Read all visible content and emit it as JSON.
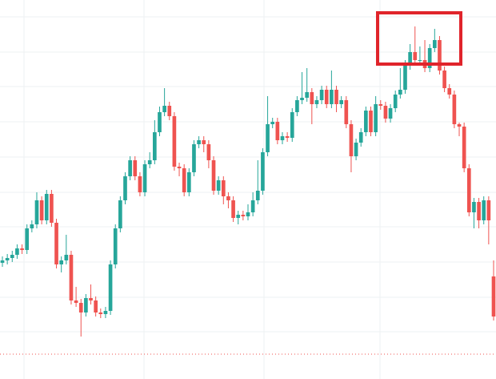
{
  "chart_data": {
    "type": "candlestick",
    "ylim": [
      0,
      473
    ],
    "up_color": "#26a69a",
    "down_color": "#ef5350",
    "open": [
      145,
      148,
      151,
      155,
      163,
      161,
      188,
      193,
      223,
      198,
      231,
      195,
      143,
      148,
      155,
      98,
      95,
      83,
      101,
      98,
      83,
      81,
      85,
      143,
      188,
      223,
      253,
      273,
      253,
      233,
      268,
      273,
      308,
      333,
      341,
      328,
      265,
      263,
      233,
      258,
      293,
      298,
      293,
      273,
      235,
      248,
      228,
      223,
      201,
      205,
      203,
      208,
      223,
      235,
      283,
      318,
      321,
      298,
      303,
      301,
      333,
      348,
      351,
      358,
      343,
      348,
      361,
      343,
      361,
      343,
      348,
      318,
      278,
      295,
      308,
      335,
      308,
      343,
      341,
      325,
      338,
      355,
      361,
      391,
      408,
      398,
      398,
      388,
      413,
      423,
      385,
      363,
      355,
      318,
      315,
      263,
      208,
      221,
      198,
      223,
      128
    ],
    "high": [
      153,
      156,
      160,
      168,
      168,
      193,
      198,
      233,
      228,
      236,
      236,
      200,
      153,
      180,
      160,
      115,
      100,
      106,
      118,
      103,
      88,
      90,
      148,
      193,
      228,
      258,
      278,
      278,
      258,
      273,
      283,
      323,
      340,
      363,
      346,
      333,
      270,
      268,
      263,
      298,
      303,
      303,
      298,
      278,
      253,
      253,
      233,
      228,
      210,
      210,
      218,
      233,
      273,
      288,
      353,
      326,
      326,
      308,
      308,
      338,
      353,
      383,
      388,
      363,
      353,
      366,
      366,
      385,
      366,
      353,
      353,
      323,
      300,
      313,
      340,
      340,
      353,
      348,
      346,
      343,
      360,
      388,
      398,
      418,
      440,
      415,
      423,
      418,
      437,
      428,
      390,
      368,
      360,
      320,
      320,
      268,
      226,
      226,
      228,
      228,
      148
    ],
    "low": [
      140,
      143,
      146,
      150,
      156,
      156,
      183,
      188,
      193,
      193,
      190,
      138,
      133,
      143,
      93,
      90,
      53,
      78,
      93,
      78,
      76,
      76,
      80,
      138,
      183,
      218,
      248,
      248,
      228,
      228,
      263,
      268,
      303,
      328,
      323,
      260,
      253,
      228,
      228,
      253,
      288,
      283,
      263,
      230,
      230,
      218,
      213,
      196,
      193,
      198,
      198,
      203,
      218,
      230,
      278,
      313,
      293,
      293,
      296,
      296,
      328,
      343,
      346,
      318,
      338,
      343,
      338,
      338,
      333,
      338,
      313,
      258,
      273,
      290,
      303,
      303,
      303,
      336,
      320,
      320,
      333,
      350,
      356,
      386,
      393,
      393,
      383,
      383,
      408,
      380,
      358,
      350,
      313,
      303,
      258,
      203,
      188,
      188,
      193,
      168,
      73
    ],
    "close": [
      148,
      151,
      155,
      163,
      161,
      188,
      193,
      223,
      198,
      231,
      195,
      143,
      148,
      155,
      98,
      95,
      83,
      101,
      98,
      83,
      81,
      85,
      143,
      188,
      223,
      253,
      273,
      253,
      233,
      268,
      273,
      308,
      333,
      341,
      328,
      265,
      263,
      233,
      258,
      293,
      298,
      293,
      273,
      235,
      248,
      228,
      223,
      201,
      205,
      203,
      208,
      223,
      235,
      283,
      318,
      321,
      298,
      303,
      301,
      333,
      348,
      351,
      358,
      343,
      348,
      361,
      343,
      361,
      343,
      348,
      318,
      278,
      295,
      308,
      335,
      308,
      343,
      341,
      325,
      338,
      355,
      361,
      391,
      408,
      398,
      398,
      388,
      413,
      423,
      385,
      363,
      355,
      318,
      315,
      263,
      208,
      221,
      198,
      223,
      198,
      78
    ]
  }
}
